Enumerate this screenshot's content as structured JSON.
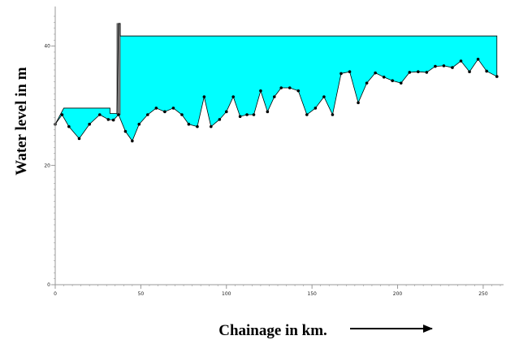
{
  "chart_data": {
    "type": "area",
    "title": "",
    "xlabel": "Chainage in km.",
    "ylabel": "Water level in m",
    "xlim": [
      0,
      260
    ],
    "ylim": [
      0,
      45
    ],
    "x_ticks": [
      0,
      50,
      100,
      150,
      200,
      250
    ],
    "y_ticks": [
      0,
      20,
      40
    ],
    "grid": false,
    "legend": "none",
    "arrow": "right",
    "colors": {
      "fill": "#00ffff",
      "line": "#000000",
      "gate": "#7a7a7a",
      "axis": "#999999"
    },
    "series": [
      {
        "role": "water-surface",
        "x": [
          0,
          5,
          32,
          32,
          36,
          37,
          38,
          38,
          258,
          258
        ],
        "y": [
          26.9,
          29.6,
          29.6,
          28.7,
          28.7,
          43.8,
          43.8,
          41.7,
          41.7,
          34.9
        ]
      },
      {
        "role": "bed-profile",
        "x": [
          0,
          4,
          8,
          14,
          20,
          26,
          31,
          34,
          37,
          41,
          45,
          49,
          54,
          59,
          64,
          69,
          74,
          78,
          83,
          87,
          91,
          96,
          100,
          104,
          108,
          112,
          116,
          120,
          124,
          128,
          132,
          137,
          142,
          147,
          152,
          157,
          162,
          167,
          172,
          177,
          182,
          187,
          192,
          197,
          202,
          207,
          212,
          217,
          222,
          227,
          232,
          237,
          242,
          247,
          252,
          258
        ],
        "y": [
          26.9,
          28.5,
          26.5,
          24.5,
          26.9,
          28.5,
          27.7,
          27.6,
          28.5,
          25.7,
          24.1,
          26.9,
          28.5,
          29.6,
          29.0,
          29.6,
          28.5,
          26.9,
          26.5,
          31.5,
          26.5,
          27.7,
          29.0,
          31.5,
          28.2,
          28.5,
          28.5,
          32.5,
          29.0,
          31.5,
          33.0,
          33.0,
          32.5,
          28.5,
          29.6,
          31.5,
          28.5,
          35.4,
          35.7,
          30.5,
          33.8,
          35.5,
          34.8,
          34.2,
          33.8,
          35.6,
          35.7,
          35.6,
          36.6,
          36.7,
          36.4,
          37.5,
          35.7,
          37.8,
          35.8,
          34.9
        ]
      }
    ]
  }
}
